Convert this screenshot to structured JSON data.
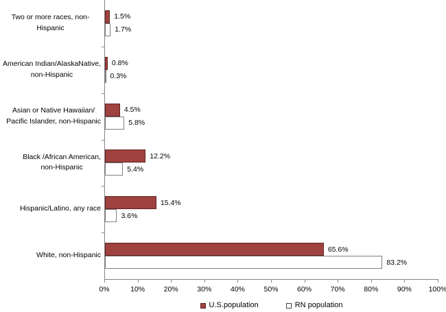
{
  "chart_data": {
    "type": "bar",
    "orientation": "horizontal",
    "title": "",
    "xlabel": "",
    "ylabel": "",
    "xlim": [
      0,
      100
    ],
    "x_ticks": [
      "0%",
      "10%",
      "20%",
      "30%",
      "40%",
      "50%",
      "60%",
      "70%",
      "80%",
      "90%",
      "100%"
    ],
    "grid": false,
    "legend_position": "bottom-center",
    "categories": [
      "Two or more races, non-Hispanic",
      "American Indian/AlaskaNative,\nnon-Hispanic",
      "Asian or Native Hawaiian/\nPacific Islander, non-Hispanic",
      "Black /African American,\nnon-Hispanic",
      "Hispanic/Latino, any race",
      "White, non-Hispanic"
    ],
    "series": [
      {
        "name": "U.S.population",
        "fill": "#A0423F",
        "border": "#5E2422",
        "values": [
          1.5,
          0.8,
          4.5,
          12.2,
          15.4,
          65.6
        ],
        "value_labels": [
          "1.5%",
          "0.8%",
          "4.5%",
          "12.2%",
          "15.4%",
          "65.6%"
        ]
      },
      {
        "name": "RN population",
        "fill": "#FFFFFF",
        "border": "#7F7F7F",
        "values": [
          1.7,
          0.3,
          5.8,
          5.4,
          3.6,
          83.2
        ],
        "value_labels": [
          "1.7%",
          "0.3%",
          "5.8%",
          "5.4%",
          "3.6%",
          "83.2%"
        ]
      }
    ],
    "axis_color": "#848484",
    "text_color": "#000000"
  }
}
